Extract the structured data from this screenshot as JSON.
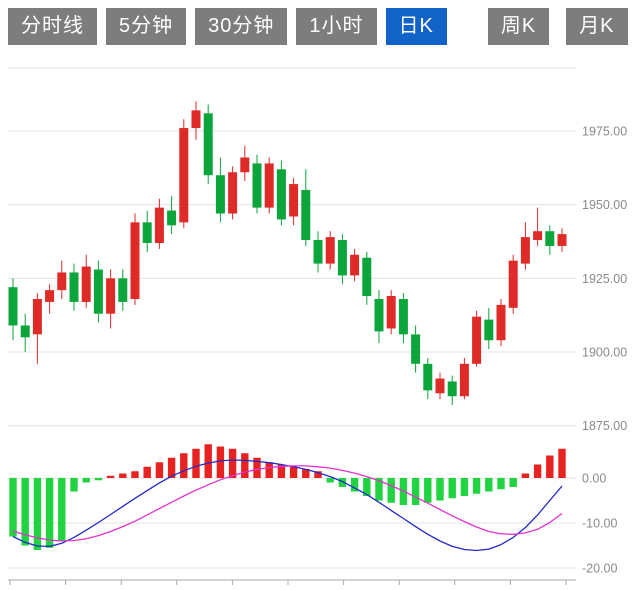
{
  "tabs": {
    "items": [
      {
        "label": "分时线",
        "selected": false
      },
      {
        "label": "5分钟",
        "selected": false
      },
      {
        "label": "30分钟",
        "selected": false
      },
      {
        "label": "1小时",
        "selected": false
      },
      {
        "label": "日K",
        "selected": true
      },
      {
        "label": "周K",
        "selected": false
      },
      {
        "label": "月K",
        "selected": false
      }
    ]
  },
  "colors": {
    "tab_bg": "#7d7d7d",
    "tab_selected_bg": "#1263c7",
    "tab_text": "#ffffff",
    "grid": "#e3e3e3",
    "axis_line": "#a9a9a9",
    "axis_text": "#8a8a8a",
    "candle_up": "#de2b27",
    "candle_down": "#0ca53c",
    "hist_up": "#e62320",
    "hist_down": "#21d340",
    "diff_line": "#2329c9",
    "dea_line": "#e432d2"
  },
  "chart_data": {
    "type": "candlestick",
    "title": "",
    "grid": true,
    "legend_position": "none",
    "selected_timeframe": "日K",
    "main_panel": {
      "ylim": [
        1872,
        1995
      ],
      "y_axis_labels": [
        {
          "text": "1975.00",
          "value": 1975
        },
        {
          "text": "1950.00",
          "value": 1950
        },
        {
          "text": "1925.00",
          "value": 1925
        },
        {
          "text": "1900.00",
          "value": 1900
        },
        {
          "text": "1875.00",
          "value": 1875
        }
      ],
      "candles_ohlc": [
        [
          1922,
          1925,
          1904,
          1909
        ],
        [
          1909,
          1913,
          1900,
          1905
        ],
        [
          1906,
          1920,
          1896,
          1918
        ],
        [
          1917,
          1923,
          1913,
          1921
        ],
        [
          1921,
          1931,
          1918,
          1927
        ],
        [
          1927,
          1930,
          1914,
          1917
        ],
        [
          1917,
          1933,
          1915,
          1929
        ],
        [
          1928,
          1931,
          1910,
          1913
        ],
        [
          1913,
          1928,
          1908,
          1925
        ],
        [
          1925,
          1928,
          1914,
          1917
        ],
        [
          1918,
          1947,
          1916,
          1944
        ],
        [
          1944,
          1948,
          1934,
          1937
        ],
        [
          1937,
          1952,
          1935,
          1949
        ],
        [
          1948,
          1953,
          1940,
          1943
        ],
        [
          1944,
          1979,
          1942,
          1976
        ],
        [
          1976,
          1985,
          1972,
          1982
        ],
        [
          1981,
          1984,
          1957,
          1960
        ],
        [
          1960,
          1966,
          1944,
          1947
        ],
        [
          1947,
          1963,
          1945,
          1961
        ],
        [
          1961,
          1970,
          1958,
          1966
        ],
        [
          1964,
          1967,
          1947,
          1949
        ],
        [
          1949,
          1966,
          1947,
          1964
        ],
        [
          1962,
          1965,
          1943,
          1945
        ],
        [
          1946,
          1959,
          1943,
          1957
        ],
        [
          1955,
          1962,
          1936,
          1938
        ],
        [
          1938,
          1941,
          1927,
          1930
        ],
        [
          1930,
          1941,
          1928,
          1939
        ],
        [
          1938,
          1940,
          1923,
          1926
        ],
        [
          1926,
          1935,
          1924,
          1933
        ],
        [
          1932,
          1934,
          1916,
          1919
        ],
        [
          1918,
          1921,
          1903,
          1907
        ],
        [
          1908,
          1921,
          1906,
          1919
        ],
        [
          1918,
          1920,
          1903,
          1906
        ],
        [
          1906,
          1909,
          1893,
          1896
        ],
        [
          1896,
          1898,
          1884,
          1887
        ],
        [
          1886,
          1893,
          1884,
          1891
        ],
        [
          1890,
          1892,
          1882,
          1885
        ],
        [
          1885,
          1898,
          1884,
          1896
        ],
        [
          1896,
          1914,
          1895,
          1912
        ],
        [
          1911,
          1915,
          1901,
          1904
        ],
        [
          1904,
          1918,
          1902,
          1916
        ],
        [
          1915,
          1933,
          1913,
          1931
        ],
        [
          1930,
          1944,
          1928,
          1939
        ],
        [
          1938,
          1949,
          1936,
          1941
        ],
        [
          1941,
          1943,
          1933,
          1936
        ],
        [
          1936,
          1942,
          1934,
          1940
        ]
      ]
    },
    "macd_panel": {
      "ylim": [
        -22.5,
        8.5
      ],
      "y_axis_labels": [
        {
          "text": "0.00",
          "value": 0
        },
        {
          "text": "-10.00",
          "value": -10
        },
        {
          "text": "-20.00",
          "value": -20
        }
      ],
      "histogram": [
        -13,
        -15,
        -16,
        -15.5,
        -14,
        -3,
        -1,
        -0.5,
        0.5,
        1,
        1.5,
        2.5,
        3.5,
        4.5,
        5.5,
        6.5,
        7.5,
        7,
        6.5,
        5.5,
        4.5,
        3.5,
        3,
        2.5,
        2,
        1.5,
        -1,
        -2,
        -3,
        -4,
        -5,
        -5.5,
        -6,
        -6,
        -5.5,
        -5,
        -4.5,
        -4,
        -3.5,
        -3,
        -2.5,
        -2,
        1,
        3,
        5,
        6.5
      ],
      "diff_line": [
        -13,
        -14.3,
        -15.1,
        -15.2,
        -14.5,
        -13.2,
        -11.6,
        -9.9,
        -8.1,
        -6.3,
        -4.5,
        -2.8,
        -1.1,
        0.4,
        1.6,
        2.6,
        3.3,
        3.8,
        4,
        3.9,
        3.7,
        3.4,
        3,
        2.5,
        1.9,
        1.2,
        0.3,
        -0.8,
        -2.2,
        -3.7,
        -5.4,
        -7.2,
        -9,
        -10.8,
        -12.5,
        -14,
        -15.2,
        -15.9,
        -16.1,
        -15.8,
        -14.8,
        -13.2,
        -11,
        -8.2,
        -5,
        -1.8
      ],
      "dea_line": [
        -11.8,
        -12.6,
        -13.3,
        -13.8,
        -14,
        -13.9,
        -13.5,
        -12.8,
        -11.9,
        -10.8,
        -9.6,
        -8.2,
        -6.8,
        -5.4,
        -4,
        -2.7,
        -1.5,
        -0.4,
        0.5,
        1.3,
        1.9,
        2.3,
        2.6,
        2.7,
        2.7,
        2.5,
        2.2,
        1.7,
        1.1,
        0.3,
        -0.6,
        -1.7,
        -2.9,
        -4.2,
        -5.6,
        -7,
        -8.4,
        -9.7,
        -10.9,
        -11.9,
        -12.4,
        -12.5,
        -12.2,
        -11.4,
        -9.9,
        -7.9
      ]
    }
  }
}
